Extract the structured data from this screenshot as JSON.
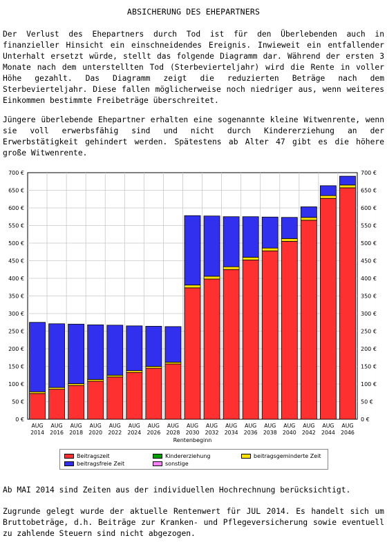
{
  "heading": "ABSICHERUNG DES EHEPARTNERS",
  "paragraphs": {
    "p1": "Der Verlust des Ehepartners durch Tod ist  für den Überlebenden auch in finanzieller Hinsicht ein  einschneidendes Ereignis. Inwieweit ein entfallender Unterhalt ersetzt würde, stellt das  folgende Diagramm dar. Während der ersten 3 Monate nach dem unterstellten Tod (Sterbevierteljahr) wird die Rente in voller Höhe gezahlt. Das Diagramm zeigt die reduzierten  Beträge nach dem Sterbevierteljahr. Diese fallen möglicherweise noch niedriger aus, wenn weiteres Einkommen bestimmte Freibeträge überschreitet.",
    "p2": "Jüngere  überlebende Ehepartner  erhalten eine  sogenannte kleine Witwenrente, wenn  sie voll  erwerbsfähig sind und  nicht durch Kindererziehung  an der Erwerbstätigkeit  gehindert werden. Spätestens  ab Alter  47 gibt  es die höhere große Witwenrente.",
    "p3": "Ab MAI 2014 sind Zeiten aus der individuellen Hochrechnung berücksichtigt.",
    "p4": "Zugrunde gelegt wurde der aktuelle Rentenwert für JUL 2014. Es handelt sich um Bruttobeträge, d.h. Beiträge  zur Kranken- und  Pflegeversicherung sowie eventuell zu zahlende Steuern sind nicht abgezogen."
  },
  "chart_data": {
    "type": "bar",
    "stacked": true,
    "xlabel": "Rentenbeginn",
    "ylabel": "",
    "ylim": [
      0,
      700
    ],
    "ytick_step": 50,
    "y_unit": "€",
    "grid": true,
    "legend_position": "bottom",
    "categories": [
      [
        "AUG",
        "2014"
      ],
      [
        "AUG",
        "2016"
      ],
      [
        "AUG",
        "2018"
      ],
      [
        "AUG",
        "2020"
      ],
      [
        "AUG",
        "2022"
      ],
      [
        "AUG",
        "2024"
      ],
      [
        "AUG",
        "2026"
      ],
      [
        "AUG",
        "2028"
      ],
      [
        "AUG",
        "2030"
      ],
      [
        "AUG",
        "2032"
      ],
      [
        "AUG",
        "2034"
      ],
      [
        "AUG",
        "2036"
      ],
      [
        "AUG",
        "2038"
      ],
      [
        "AUG",
        "2040"
      ],
      [
        "AUG",
        "2042"
      ],
      [
        "AUG",
        "2044"
      ],
      [
        "AUG",
        "2046"
      ]
    ],
    "series": [
      {
        "name": "Beitragszeit",
        "color": "#ff3030",
        "values": [
          73,
          85,
          96,
          108,
          120,
          133,
          145,
          157,
          373,
          398,
          425,
          452,
          478,
          505,
          565,
          627,
          657
        ]
      },
      {
        "name": "beitragsgeminderte Zeit",
        "color": "#ffe000",
        "values": [
          5,
          5,
          5,
          5,
          5,
          5,
          5,
          5,
          8,
          8,
          8,
          8,
          8,
          8,
          8,
          8,
          8
        ]
      },
      {
        "name": "Kindererziehung",
        "color": "#00a000",
        "values": [
          0,
          0,
          0,
          0,
          0,
          0,
          0,
          0,
          0,
          0,
          0,
          0,
          0,
          0,
          0,
          0,
          0
        ]
      },
      {
        "name": "sonstige",
        "color": "#ff80ff",
        "values": [
          0,
          0,
          0,
          0,
          0,
          0,
          0,
          0,
          0,
          0,
          0,
          0,
          0,
          0,
          0,
          0,
          0
        ]
      },
      {
        "name": "beitragsfreie Zeit",
        "color": "#3030ee",
        "values": [
          197,
          181,
          169,
          155,
          142,
          127,
          114,
          101,
          197,
          171,
          142,
          115,
          88,
          60,
          30,
          28,
          25
        ]
      }
    ]
  }
}
